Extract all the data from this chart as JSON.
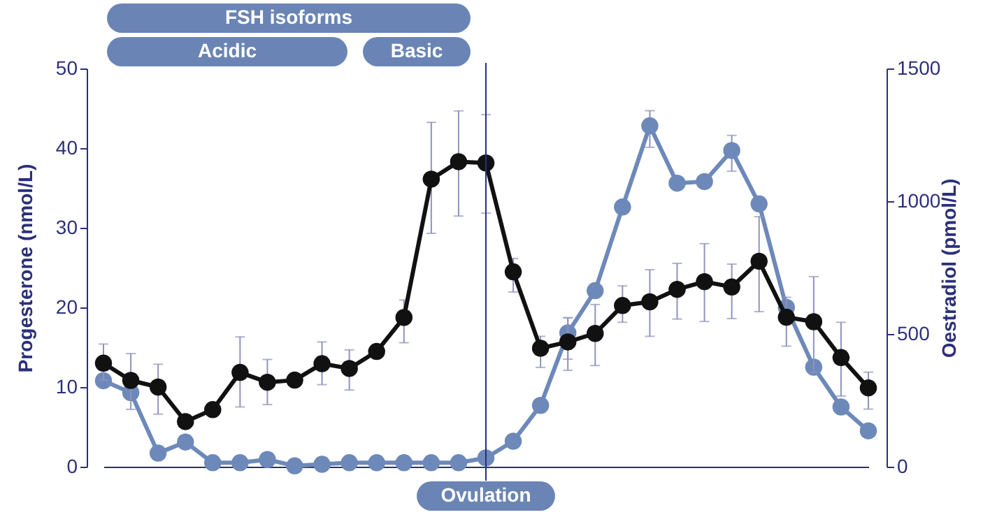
{
  "chart_data": {
    "type": "line",
    "xlabel": null,
    "ylabel": "Progesterone (nmol/L)",
    "y2label": "Oestradiol (pmol/L)",
    "categories": [
      null,
      null,
      null,
      null,
      null,
      null,
      null,
      null,
      null,
      null,
      null,
      null,
      null,
      null,
      null,
      null,
      null,
      null,
      null,
      null,
      null,
      null,
      null,
      null,
      null,
      null,
      null,
      null,
      null
    ],
    "ylim": [
      0,
      50
    ],
    "yticks": [
      0,
      10,
      20,
      30,
      40,
      50
    ],
    "y2lim": [
      0,
      1500
    ],
    "y2ticks": [
      0,
      500,
      1000,
      1500
    ],
    "marker": "circle",
    "grid": false,
    "series": [
      {
        "color": "#6d89b9",
        "values": [
          10.8,
          9.3,
          1.7,
          3.1,
          0.5,
          0.5,
          0.9,
          0.1,
          0.3,
          0.5,
          0.5,
          0.5,
          0.5,
          0.5,
          1.1,
          3.2,
          7.7,
          16.8,
          22.1,
          32.6,
          42.8,
          35.6,
          35.8,
          39.7,
          33.0,
          20.0,
          12.5,
          7.5,
          4.5
        ],
        "errors": [
          [
            10.0,
            12.1
          ],
          null,
          null,
          null,
          null,
          null,
          null,
          null,
          null,
          null,
          null,
          null,
          null,
          null,
          null,
          null,
          null,
          [
            13.5,
            18.7
          ],
          null,
          null,
          [
            40.1,
            44.7
          ],
          null,
          null,
          [
            37.1,
            41.6
          ],
          null,
          null,
          null,
          null,
          null
        ]
      },
      {
        "color": "#111111",
        "axis": "y2",
        "values": [
          390,
          325,
          300,
          170,
          215,
          355,
          318,
          326,
          388,
          370,
          434,
          562,
          1083,
          1149,
          1144,
          734,
          446,
          470,
          502,
          607,
          621,
          668,
          697,
          677,
          774,
          563,
          546,
          411,
          297
        ],
        "errors": [
          [
            326,
            462
          ],
          [
            216,
            426
          ],
          [
            198,
            386
          ],
          null,
          null,
          [
            225,
            489
          ],
          [
            234,
            404
          ],
          null,
          [
            309,
            470
          ],
          [
            289,
            440
          ],
          null,
          [
            467,
            628
          ],
          [
            879,
            1297
          ],
          [
            944,
            1340
          ],
          [
            955,
            1326
          ],
          [
            658,
            784
          ],
          [
            374,
            491
          ],
          [
            363,
            561
          ],
          [
            381,
            611
          ],
          [
            544,
            681
          ],
          [
            491,
            742
          ],
          [
            556,
            766
          ],
          [
            547,
            840
          ],
          [
            558,
            763
          ],
          [
            584,
            942
          ],
          [
            454,
            638
          ],
          [
            354,
            716
          ],
          [
            266,
            544
          ],
          [
            217,
            356
          ]
        ]
      }
    ],
    "annotations": [
      "FSH isoforms",
      "Acidic",
      "Basic",
      "Ovulation"
    ]
  }
}
